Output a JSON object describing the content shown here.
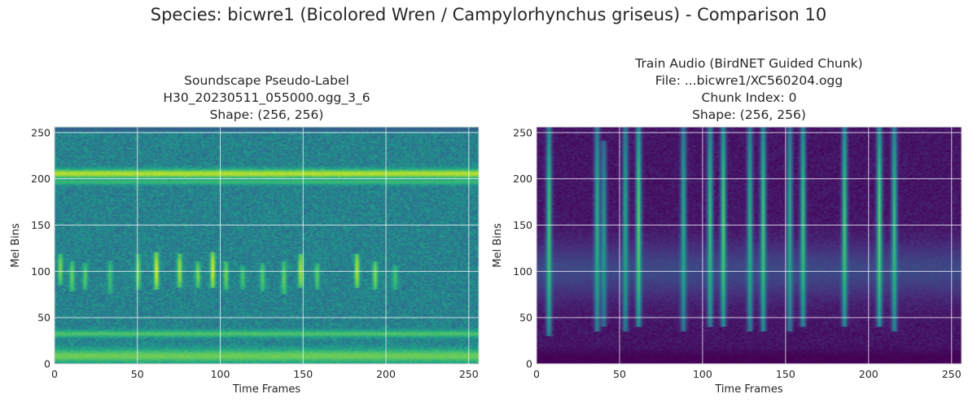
{
  "suptitle": "Species: bicwre1 (Bicolored Wren / Campylorhynchus griseus) - Comparison 10",
  "chart_data": [
    {
      "type": "heatmap",
      "colormap": "viridis",
      "title_lines": [
        "Soundscape Pseudo-Label",
        "H30_20230511_055000.ogg_3_6",
        "Shape: (256, 256)"
      ],
      "xlabel": "Time Frames",
      "ylabel": "Mel Bins",
      "xlim": [
        0,
        256
      ],
      "ylim": [
        0,
        256
      ],
      "xticks": [
        0,
        50,
        100,
        150,
        200,
        250
      ],
      "yticks": [
        0,
        50,
        100,
        150,
        200,
        250
      ],
      "grid": true,
      "shape": [
        256,
        256
      ],
      "base_level": 0.45,
      "bands": [
        {
          "y": 8,
          "width": 8,
          "level": 0.78
        },
        {
          "y": 32,
          "width": 4,
          "level": 0.72
        },
        {
          "y": 205,
          "width": 5,
          "level": 0.9
        },
        {
          "y": 196,
          "width": 3,
          "level": 0.68
        },
        {
          "y": 253,
          "width": 2,
          "level": 0.3
        }
      ],
      "calls": [
        {
          "x": 3,
          "y_low": 85,
          "y_high": 118,
          "level": 0.82
        },
        {
          "x": 10,
          "y_low": 78,
          "y_high": 110,
          "level": 0.78
        },
        {
          "x": 18,
          "y_low": 80,
          "y_high": 108,
          "level": 0.76
        },
        {
          "x": 33,
          "y_low": 75,
          "y_high": 110,
          "level": 0.72
        },
        {
          "x": 50,
          "y_low": 80,
          "y_high": 118,
          "level": 0.8
        },
        {
          "x": 61,
          "y_low": 80,
          "y_high": 120,
          "level": 0.95
        },
        {
          "x": 75,
          "y_low": 82,
          "y_high": 118,
          "level": 0.88
        },
        {
          "x": 86,
          "y_low": 82,
          "y_high": 110,
          "level": 0.82
        },
        {
          "x": 95,
          "y_low": 82,
          "y_high": 120,
          "level": 0.95
        },
        {
          "x": 103,
          "y_low": 80,
          "y_high": 110,
          "level": 0.8
        },
        {
          "x": 113,
          "y_low": 80,
          "y_high": 105,
          "level": 0.72
        },
        {
          "x": 125,
          "y_low": 78,
          "y_high": 108,
          "level": 0.76
        },
        {
          "x": 138,
          "y_low": 75,
          "y_high": 110,
          "level": 0.78
        },
        {
          "x": 148,
          "y_low": 82,
          "y_high": 118,
          "level": 0.9
        },
        {
          "x": 158,
          "y_low": 80,
          "y_high": 108,
          "level": 0.76
        },
        {
          "x": 182,
          "y_low": 82,
          "y_high": 118,
          "level": 0.9
        },
        {
          "x": 193,
          "y_low": 80,
          "y_high": 110,
          "level": 0.84
        },
        {
          "x": 205,
          "y_low": 80,
          "y_high": 105,
          "level": 0.72
        }
      ]
    },
    {
      "type": "heatmap",
      "colormap": "viridis",
      "title_lines": [
        "Train Audio (BirdNET Guided Chunk)",
        "File: ...bicwre1/XC560204.ogg",
        "Chunk Index: 0",
        "Shape: (256, 256)"
      ],
      "xlabel": "Time Frames",
      "ylabel": "Mel Bins",
      "xlim": [
        0,
        256
      ],
      "ylim": [
        0,
        256
      ],
      "xticks": [
        0,
        50,
        100,
        150,
        200,
        250
      ],
      "yticks": [
        0,
        50,
        100,
        150,
        200,
        250
      ],
      "grid": true,
      "shape": [
        256,
        256
      ],
      "base_level": 0.06,
      "bands": [
        {
          "y": 5,
          "width": 9,
          "level": 0.0
        },
        {
          "y": 100,
          "width": 30,
          "level": 0.22
        }
      ],
      "calls": [
        {
          "x": 7,
          "y_low": 30,
          "y_high": 256,
          "level": 0.72
        },
        {
          "x": 36,
          "y_low": 35,
          "y_high": 256,
          "level": 0.65
        },
        {
          "x": 40,
          "y_low": 40,
          "y_high": 240,
          "level": 0.55
        },
        {
          "x": 53,
          "y_low": 35,
          "y_high": 256,
          "level": 0.6
        },
        {
          "x": 61,
          "y_low": 40,
          "y_high": 256,
          "level": 0.78
        },
        {
          "x": 88,
          "y_low": 35,
          "y_high": 256,
          "level": 0.62
        },
        {
          "x": 104,
          "y_low": 40,
          "y_high": 256,
          "level": 0.7
        },
        {
          "x": 112,
          "y_low": 40,
          "y_high": 256,
          "level": 0.75
        },
        {
          "x": 128,
          "y_low": 35,
          "y_high": 256,
          "level": 0.65
        },
        {
          "x": 136,
          "y_low": 35,
          "y_high": 256,
          "level": 0.72
        },
        {
          "x": 152,
          "y_low": 35,
          "y_high": 256,
          "level": 0.62
        },
        {
          "x": 160,
          "y_low": 40,
          "y_high": 256,
          "level": 0.7
        },
        {
          "x": 185,
          "y_low": 40,
          "y_high": 256,
          "level": 0.72
        },
        {
          "x": 206,
          "y_low": 40,
          "y_high": 256,
          "level": 0.78
        },
        {
          "x": 215,
          "y_low": 35,
          "y_high": 256,
          "level": 0.7
        }
      ]
    }
  ]
}
